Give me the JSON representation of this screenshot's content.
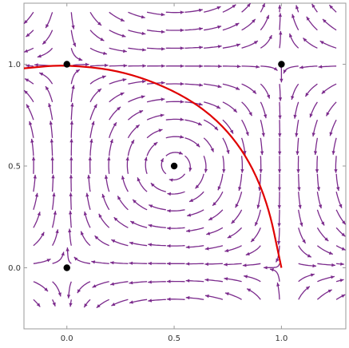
{
  "chart_data": {
    "type": "stream_plot",
    "xlim": [
      -0.2,
      1.3
    ],
    "ylim": [
      -0.3,
      1.3
    ],
    "x_ticks": [
      {
        "value": 0.0,
        "label": "0.0"
      },
      {
        "value": 0.5,
        "label": "0.5"
      },
      {
        "value": 1.0,
        "label": "1.0"
      }
    ],
    "y_ticks": [
      {
        "value": 0.0,
        "label": "0.0"
      },
      {
        "value": 0.5,
        "label": "0.5"
      },
      {
        "value": 1.0,
        "label": "1.0"
      }
    ],
    "grid": false,
    "stream_color": "#7b2a8c",
    "curve_color": "#e00000",
    "stream_field_ranges": {
      "x": [
        -0.2,
        1.3
      ],
      "y": [
        -0.2,
        1.3
      ]
    },
    "equilibrium_points": [
      {
        "x": 0.0,
        "y": 0.0
      },
      {
        "x": 0.0,
        "y": 1.0
      },
      {
        "x": 1.0,
        "y": 1.0
      },
      {
        "x": 0.5,
        "y": 0.5
      }
    ],
    "curve": {
      "description_points": [
        {
          "x": -0.2,
          "y": 0.98
        },
        {
          "x": 0.0,
          "y": 1.0
        },
        {
          "x": 0.3,
          "y": 0.96
        },
        {
          "x": 0.6,
          "y": 0.82
        },
        {
          "x": 0.8,
          "y": 0.62
        },
        {
          "x": 0.93,
          "y": 0.35
        },
        {
          "x": 1.0,
          "y": 0.0
        }
      ]
    }
  }
}
